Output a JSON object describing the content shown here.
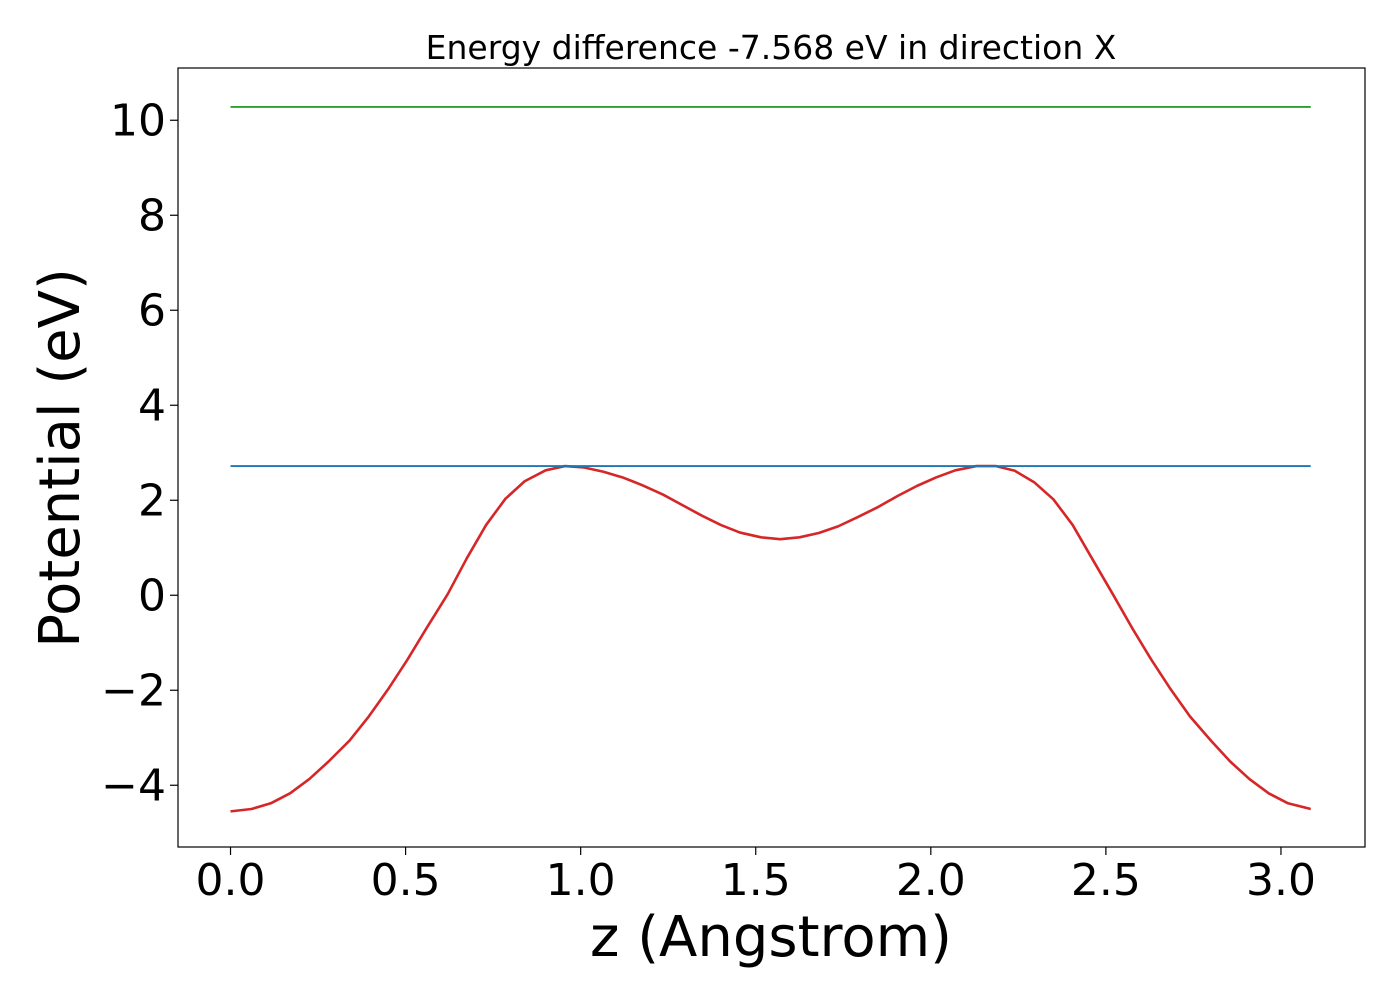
{
  "chart_data": {
    "type": "line",
    "title": "Energy difference -7.568 eV in direction X",
    "xlabel": "z (Angstrom)",
    "ylabel": "Potential (eV)",
    "xlim": [
      -0.15,
      3.24
    ],
    "ylim": [
      -5.3,
      11.1
    ],
    "xticks": [
      0.0,
      0.5,
      1.0,
      1.5,
      2.0,
      2.5,
      3.0
    ],
    "xtick_labels": [
      "0.0",
      "0.5",
      "1.0",
      "1.5",
      "2.0",
      "2.5",
      "3.0"
    ],
    "yticks": [
      -4,
      -2,
      0,
      2,
      4,
      6,
      8,
      10
    ],
    "ytick_labels": [
      "−4",
      "−2",
      "0",
      "2",
      "4",
      "6",
      "8",
      "10"
    ],
    "grid": false,
    "legend": "none",
    "series": [
      {
        "color": "#d62728",
        "x": [
          0.0,
          0.06,
          0.115,
          0.17,
          0.225,
          0.28,
          0.34,
          0.395,
          0.45,
          0.505,
          0.56,
          0.62,
          0.675,
          0.73,
          0.785,
          0.84,
          0.9,
          0.955,
          1.01,
          1.065,
          1.12,
          1.175,
          1.235,
          1.29,
          1.345,
          1.4,
          1.455,
          1.515,
          1.57,
          1.625,
          1.68,
          1.735,
          1.79,
          1.85,
          1.905,
          1.96,
          2.015,
          2.07,
          2.13,
          2.185,
          2.24,
          2.295,
          2.35,
          2.405,
          2.46,
          2.52,
          2.575,
          2.63,
          2.685,
          2.74,
          2.8,
          2.855,
          2.91,
          2.965,
          3.02,
          3.085
        ],
        "y": [
          -4.55,
          -4.5,
          -4.38,
          -4.17,
          -3.87,
          -3.5,
          -3.06,
          -2.55,
          -1.98,
          -1.36,
          -0.69,
          0.02,
          0.78,
          1.48,
          2.03,
          2.4,
          2.63,
          2.72,
          2.69,
          2.6,
          2.48,
          2.32,
          2.12,
          1.9,
          1.68,
          1.48,
          1.32,
          1.22,
          1.18,
          1.22,
          1.31,
          1.45,
          1.64,
          1.86,
          2.09,
          2.3,
          2.48,
          2.63,
          2.72,
          2.72,
          2.62,
          2.38,
          2.02,
          1.48,
          0.78,
          0.02,
          -0.69,
          -1.36,
          -1.98,
          -2.55,
          -3.06,
          -3.5,
          -3.87,
          -4.17,
          -4.38,
          -4.5
        ]
      },
      {
        "color": "#1f77b4",
        "x": [
          0.0,
          3.085
        ],
        "y": [
          2.72,
          2.72
        ]
      },
      {
        "color": "#2ca02c",
        "x": [
          0.0,
          3.085
        ],
        "y": [
          10.28,
          10.28
        ]
      }
    ]
  }
}
